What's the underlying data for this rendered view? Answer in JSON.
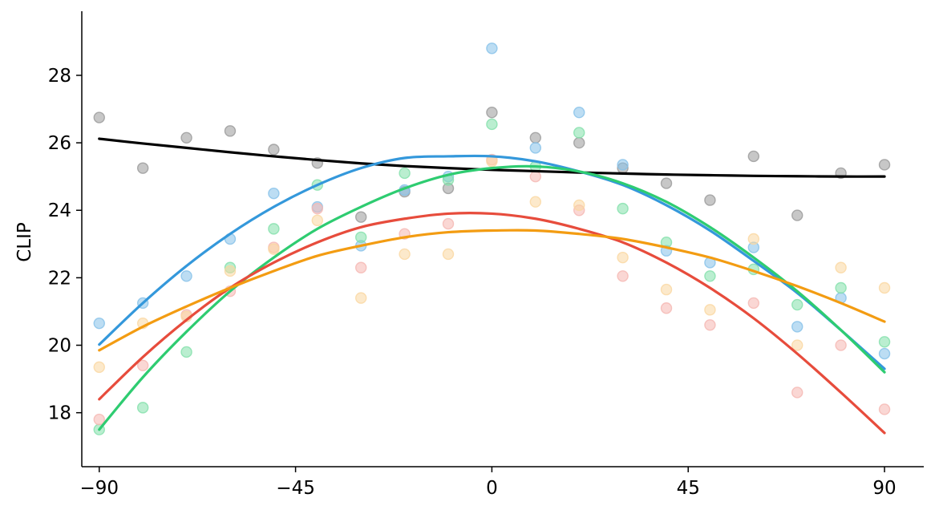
{
  "chart_data": {
    "type": "scatter",
    "title": "",
    "xlabel": "",
    "ylabel": "CLIP",
    "xlim": [
      -94,
      99
    ],
    "ylim": [
      16.4,
      29.9
    ],
    "x_ticks": [
      -90,
      -45,
      0,
      45,
      90
    ],
    "x_tick_labels": [
      "−90",
      "−45",
      "0",
      "45",
      "90"
    ],
    "y_ticks": [
      18,
      20,
      22,
      24,
      26,
      28
    ],
    "y_tick_labels": [
      "18",
      "20",
      "22",
      "24",
      "26",
      "28"
    ],
    "grid": false,
    "x": [
      -90,
      -80,
      -70,
      -60,
      -50,
      -40,
      -30,
      -20,
      -10,
      0,
      10,
      20,
      30,
      40,
      50,
      60,
      70,
      80,
      90
    ],
    "series": [
      {
        "color": "#999999",
        "points": [
          26.75,
          25.25,
          26.15,
          26.35,
          25.8,
          25.4,
          23.8,
          24.55,
          24.65,
          26.9,
          26.15,
          26.0,
          25.25,
          24.8,
          24.3,
          25.6,
          23.85,
          25.1,
          25.35
        ],
        "fit": [
          26.12,
          25.98,
          25.85,
          25.72,
          25.6,
          25.49,
          25.39,
          25.31,
          25.25,
          25.2,
          25.16,
          25.12,
          25.09,
          25.06,
          25.04,
          25.02,
          25.01,
          25.0,
          25.0
        ],
        "line_color": "#000000"
      },
      {
        "color": "#85c1e9",
        "points": [
          20.65,
          21.25,
          22.05,
          23.15,
          24.5,
          24.1,
          22.95,
          24.6,
          25.0,
          28.8,
          25.85,
          26.9,
          25.35,
          22.8,
          22.45,
          22.9,
          20.55,
          21.4,
          19.75
        ],
        "fit": [
          20.02,
          21.25,
          22.35,
          23.3,
          24.1,
          24.75,
          25.25,
          25.55,
          25.6,
          25.6,
          25.45,
          25.15,
          24.75,
          24.15,
          23.4,
          22.5,
          21.55,
          20.45,
          19.3
        ],
        "line_color": "#3498db"
      },
      {
        "color": "#82e0aa",
        "points": [
          17.5,
          18.15,
          19.8,
          22.3,
          23.45,
          24.75,
          23.2,
          25.1,
          24.9,
          26.55,
          25.3,
          26.3,
          24.05,
          23.05,
          22.05,
          22.25,
          21.2,
          21.7,
          20.1
        ],
        "fit": [
          17.5,
          19.05,
          20.4,
          21.6,
          22.6,
          23.45,
          24.1,
          24.65,
          25.05,
          25.25,
          25.3,
          25.15,
          24.8,
          24.25,
          23.5,
          22.6,
          21.6,
          20.45,
          19.2
        ],
        "line_color": "#2ecc71"
      },
      {
        "color": "#f5b7b1",
        "points": [
          17.8,
          19.4,
          20.9,
          21.6,
          22.9,
          24.05,
          22.3,
          23.3,
          23.6,
          25.5,
          25.0,
          24.0,
          22.05,
          21.1,
          20.6,
          21.25,
          18.6,
          20.0,
          18.1
        ],
        "fit": [
          18.4,
          19.65,
          20.75,
          21.7,
          22.45,
          23.05,
          23.5,
          23.75,
          23.9,
          23.9,
          23.75,
          23.45,
          23.05,
          22.45,
          21.7,
          20.8,
          19.75,
          18.6,
          17.4
        ],
        "line_color": "#e74c3c"
      },
      {
        "color": "#fad7a0",
        "points": [
          19.35,
          20.65,
          20.85,
          22.2,
          22.85,
          23.7,
          21.4,
          22.7,
          22.7,
          25.45,
          24.25,
          24.15,
          22.6,
          21.65,
          21.05,
          23.15,
          20.0,
          22.3,
          21.7
        ],
        "fit": [
          19.85,
          20.55,
          21.15,
          21.7,
          22.2,
          22.65,
          22.95,
          23.2,
          23.35,
          23.4,
          23.4,
          23.3,
          23.15,
          22.9,
          22.6,
          22.2,
          21.75,
          21.25,
          20.7
        ],
        "line_color": "#f39c12"
      }
    ]
  }
}
